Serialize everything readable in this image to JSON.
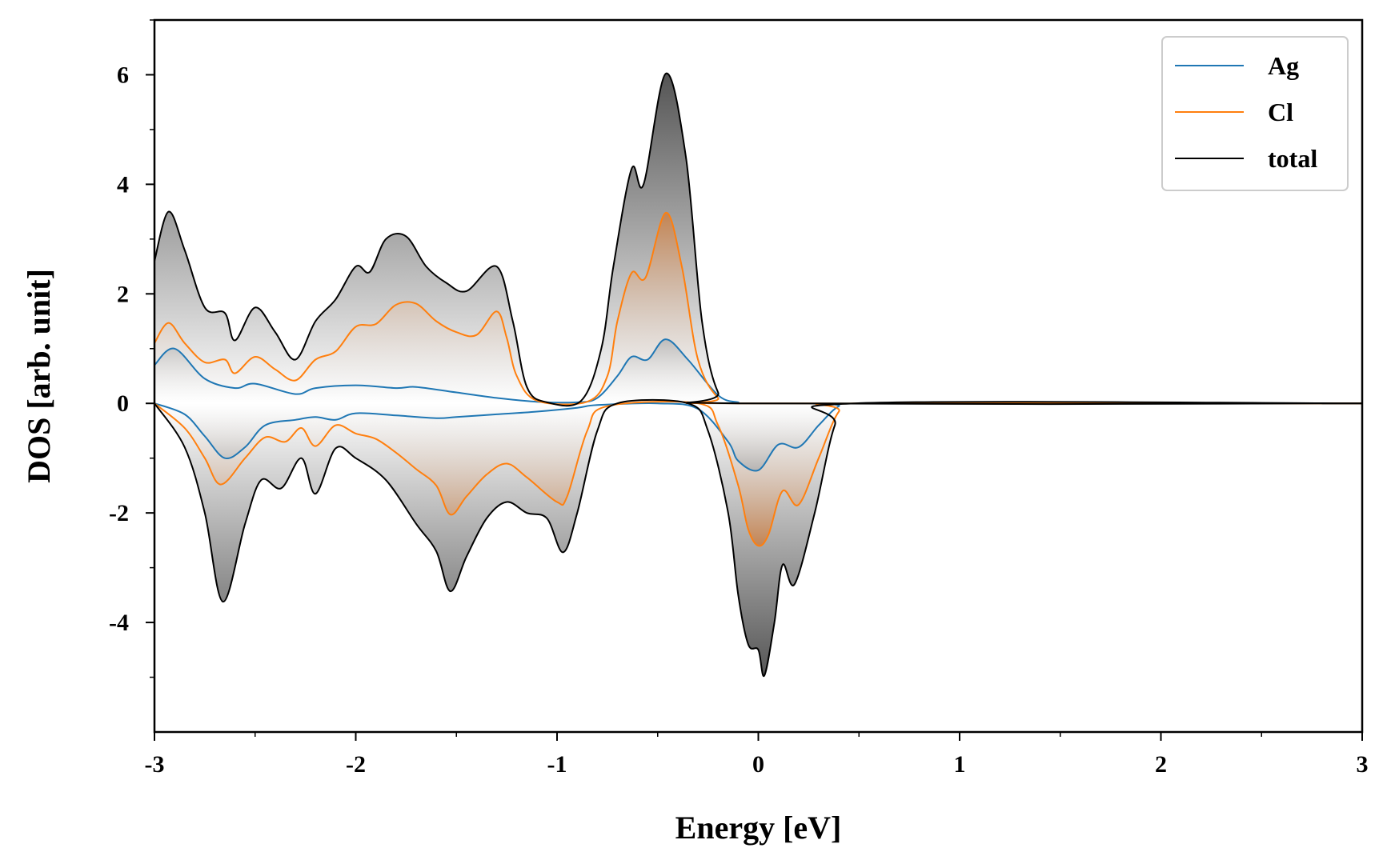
{
  "chart_data": {
    "type": "area",
    "xlabel": "Energy [eV]",
    "ylabel": "DOS [arb. unit]",
    "xlim": [
      -3,
      3
    ],
    "ylim": [
      -6,
      7
    ],
    "xticks": [
      -3,
      -2,
      -1,
      0,
      1,
      2,
      3
    ],
    "xtick_labels": [
      "-3",
      "-2",
      "-1",
      "0",
      "1",
      "2",
      "3"
    ],
    "yticks": [
      -4,
      -2,
      0,
      2,
      4,
      6
    ],
    "ytick_labels": [
      "-4",
      "-2",
      "0",
      "2",
      "4",
      "6"
    ],
    "grid": false,
    "legend_position": "top-right",
    "series": [
      {
        "name": "Ag",
        "color": "#1f77b4",
        "up": [
          [
            -3.0,
            0.7
          ],
          [
            -2.9,
            1.0
          ],
          [
            -2.75,
            0.45
          ],
          [
            -2.6,
            0.28
          ],
          [
            -2.5,
            0.36
          ],
          [
            -2.3,
            0.17
          ],
          [
            -2.2,
            0.28
          ],
          [
            -2.0,
            0.33
          ],
          [
            -1.8,
            0.28
          ],
          [
            -1.7,
            0.3
          ],
          [
            -1.5,
            0.2
          ],
          [
            -1.3,
            0.1
          ],
          [
            -1.1,
            0.03
          ],
          [
            -0.9,
            0.02
          ],
          [
            -0.8,
            0.1
          ],
          [
            -0.7,
            0.5
          ],
          [
            -0.63,
            0.85
          ],
          [
            -0.55,
            0.8
          ],
          [
            -0.46,
            1.17
          ],
          [
            -0.35,
            0.8
          ],
          [
            -0.2,
            0.15
          ],
          [
            -0.1,
            0.02
          ],
          [
            0.0,
            0.0
          ],
          [
            3.0,
            0.0
          ]
        ],
        "down": [
          [
            -3.0,
            0.0
          ],
          [
            -2.85,
            -0.2
          ],
          [
            -2.75,
            -0.6
          ],
          [
            -2.65,
            -1.0
          ],
          [
            -2.55,
            -0.8
          ],
          [
            -2.45,
            -0.4
          ],
          [
            -2.3,
            -0.3
          ],
          [
            -2.2,
            -0.25
          ],
          [
            -2.1,
            -0.3
          ],
          [
            -2.0,
            -0.18
          ],
          [
            -1.8,
            -0.22
          ],
          [
            -1.6,
            -0.27
          ],
          [
            -1.5,
            -0.25
          ],
          [
            -1.3,
            -0.2
          ],
          [
            -1.1,
            -0.15
          ],
          [
            -0.9,
            -0.08
          ],
          [
            -0.8,
            -0.03
          ],
          [
            -0.5,
            0.0
          ],
          [
            -0.3,
            -0.1
          ],
          [
            -0.15,
            -0.7
          ],
          [
            -0.1,
            -1.05
          ],
          [
            0.0,
            -1.22
          ],
          [
            0.1,
            -0.75
          ],
          [
            0.2,
            -0.8
          ],
          [
            0.3,
            -0.4
          ],
          [
            0.4,
            -0.05
          ],
          [
            0.5,
            0.0
          ],
          [
            3.0,
            0.0
          ]
        ]
      },
      {
        "name": "Cl",
        "color": "#ff7f0e",
        "up": [
          [
            -3.0,
            1.1
          ],
          [
            -2.93,
            1.47
          ],
          [
            -2.85,
            1.1
          ],
          [
            -2.75,
            0.75
          ],
          [
            -2.65,
            0.8
          ],
          [
            -2.6,
            0.55
          ],
          [
            -2.5,
            0.85
          ],
          [
            -2.4,
            0.62
          ],
          [
            -2.3,
            0.42
          ],
          [
            -2.2,
            0.8
          ],
          [
            -2.1,
            0.95
          ],
          [
            -2.0,
            1.4
          ],
          [
            -1.9,
            1.45
          ],
          [
            -1.8,
            1.8
          ],
          [
            -1.7,
            1.82
          ],
          [
            -1.6,
            1.5
          ],
          [
            -1.5,
            1.3
          ],
          [
            -1.4,
            1.25
          ],
          [
            -1.3,
            1.68
          ],
          [
            -1.25,
            1.2
          ],
          [
            -1.2,
            0.5
          ],
          [
            -1.1,
            0.05
          ],
          [
            -0.85,
            0.03
          ],
          [
            -0.75,
            0.5
          ],
          [
            -0.7,
            1.5
          ],
          [
            -0.63,
            2.38
          ],
          [
            -0.56,
            2.3
          ],
          [
            -0.46,
            3.48
          ],
          [
            -0.38,
            2.5
          ],
          [
            -0.3,
            0.8
          ],
          [
            -0.2,
            0.1
          ],
          [
            -0.1,
            0.0
          ],
          [
            3.0,
            0.0
          ]
        ],
        "down": [
          [
            -3.0,
            0.0
          ],
          [
            -2.85,
            -0.45
          ],
          [
            -2.75,
            -1.0
          ],
          [
            -2.67,
            -1.48
          ],
          [
            -2.55,
            -1.0
          ],
          [
            -2.45,
            -0.62
          ],
          [
            -2.35,
            -0.7
          ],
          [
            -2.27,
            -0.45
          ],
          [
            -2.2,
            -0.78
          ],
          [
            -2.1,
            -0.4
          ],
          [
            -2.0,
            -0.55
          ],
          [
            -1.9,
            -0.65
          ],
          [
            -1.8,
            -0.9
          ],
          [
            -1.7,
            -1.2
          ],
          [
            -1.6,
            -1.5
          ],
          [
            -1.53,
            -2.03
          ],
          [
            -1.45,
            -1.7
          ],
          [
            -1.35,
            -1.3
          ],
          [
            -1.25,
            -1.1
          ],
          [
            -1.15,
            -1.35
          ],
          [
            -1.0,
            -1.8
          ],
          [
            -0.95,
            -1.7
          ],
          [
            -0.85,
            -0.5
          ],
          [
            -0.75,
            -0.05
          ],
          [
            -0.3,
            0.0
          ],
          [
            -0.2,
            -0.4
          ],
          [
            -0.1,
            -1.5
          ],
          [
            -0.05,
            -2.3
          ],
          [
            0.0,
            -2.6
          ],
          [
            0.05,
            -2.4
          ],
          [
            0.12,
            -1.6
          ],
          [
            0.2,
            -1.85
          ],
          [
            0.3,
            -1.0
          ],
          [
            0.4,
            -0.15
          ],
          [
            0.5,
            0.0
          ],
          [
            3.0,
            0.0
          ]
        ]
      },
      {
        "name": "total",
        "color": "#000000",
        "up": [
          [
            -3.0,
            2.6
          ],
          [
            -2.93,
            3.5
          ],
          [
            -2.85,
            2.8
          ],
          [
            -2.75,
            1.75
          ],
          [
            -2.65,
            1.65
          ],
          [
            -2.6,
            1.15
          ],
          [
            -2.5,
            1.75
          ],
          [
            -2.4,
            1.3
          ],
          [
            -2.3,
            0.8
          ],
          [
            -2.2,
            1.5
          ],
          [
            -2.1,
            1.9
          ],
          [
            -2.0,
            2.5
          ],
          [
            -1.93,
            2.4
          ],
          [
            -1.85,
            3.0
          ],
          [
            -1.75,
            3.05
          ],
          [
            -1.65,
            2.5
          ],
          [
            -1.55,
            2.2
          ],
          [
            -1.45,
            2.05
          ],
          [
            -1.3,
            2.5
          ],
          [
            -1.22,
            1.5
          ],
          [
            -1.15,
            0.3
          ],
          [
            -1.05,
            0.02
          ],
          [
            -0.88,
            0.05
          ],
          [
            -0.78,
            1.0
          ],
          [
            -0.72,
            2.5
          ],
          [
            -0.63,
            4.28
          ],
          [
            -0.57,
            4.0
          ],
          [
            -0.46,
            6.02
          ],
          [
            -0.36,
            4.5
          ],
          [
            -0.28,
            1.5
          ],
          [
            -0.2,
            0.2
          ],
          [
            -0.1,
            0.0
          ],
          [
            3.0,
            0.0
          ]
        ],
        "down": [
          [
            -3.0,
            0.0
          ],
          [
            -2.85,
            -0.8
          ],
          [
            -2.75,
            -2.0
          ],
          [
            -2.66,
            -3.62
          ],
          [
            -2.55,
            -2.2
          ],
          [
            -2.47,
            -1.4
          ],
          [
            -2.37,
            -1.55
          ],
          [
            -2.27,
            -1.0
          ],
          [
            -2.2,
            -1.65
          ],
          [
            -2.1,
            -0.82
          ],
          [
            -2.0,
            -1.0
          ],
          [
            -1.85,
            -1.4
          ],
          [
            -1.7,
            -2.2
          ],
          [
            -1.6,
            -2.7
          ],
          [
            -1.53,
            -3.43
          ],
          [
            -1.45,
            -2.8
          ],
          [
            -1.35,
            -2.1
          ],
          [
            -1.25,
            -1.8
          ],
          [
            -1.15,
            -2.0
          ],
          [
            -1.05,
            -2.1
          ],
          [
            -0.97,
            -2.72
          ],
          [
            -0.9,
            -2.0
          ],
          [
            -0.8,
            -0.5
          ],
          [
            -0.7,
            0.0
          ],
          [
            -0.35,
            0.0
          ],
          [
            -0.25,
            -0.5
          ],
          [
            -0.15,
            -2.0
          ],
          [
            -0.1,
            -3.5
          ],
          [
            -0.05,
            -4.4
          ],
          [
            0.0,
            -4.5
          ],
          [
            0.03,
            -4.97
          ],
          [
            0.08,
            -4.0
          ],
          [
            0.12,
            -2.95
          ],
          [
            0.18,
            -3.3
          ],
          [
            0.28,
            -2.0
          ],
          [
            0.38,
            -0.4
          ],
          [
            0.48,
            0.0
          ],
          [
            3.0,
            0.0
          ]
        ]
      }
    ]
  }
}
